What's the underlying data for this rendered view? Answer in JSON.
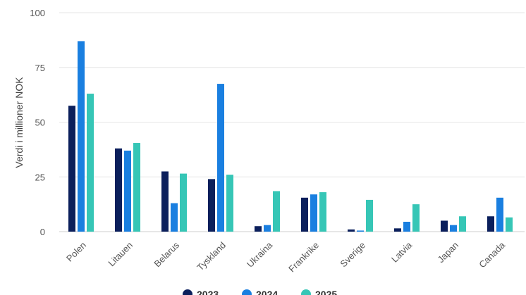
{
  "chart_data": {
    "type": "bar",
    "title": "",
    "xlabel": "",
    "ylabel": "Verdi i millioner NOK",
    "ylim": [
      0,
      100
    ],
    "yticks": [
      0,
      25,
      50,
      75,
      100
    ],
    "grid": true,
    "legend_position": "bottom",
    "categories": [
      "Polen",
      "Litauen",
      "Belarus",
      "Tyskland",
      "Ukraina",
      "Frankrike",
      "Sverige",
      "Latvia",
      "Japan",
      "Canada"
    ],
    "series": [
      {
        "name": "2023",
        "color": "#0b1f5c",
        "values": [
          57.5,
          38,
          27.5,
          24,
          2.5,
          15.5,
          1,
          1.5,
          5,
          7
        ]
      },
      {
        "name": "2024",
        "color": "#1a7fe0",
        "values": [
          87,
          37,
          13,
          67.5,
          3,
          17,
          0.5,
          4.5,
          3,
          15.5
        ]
      },
      {
        "name": "2025",
        "color": "#36c6b6",
        "values": [
          63,
          40.5,
          26.5,
          26,
          18.5,
          18,
          14.5,
          12.5,
          7,
          6.5
        ]
      }
    ]
  }
}
